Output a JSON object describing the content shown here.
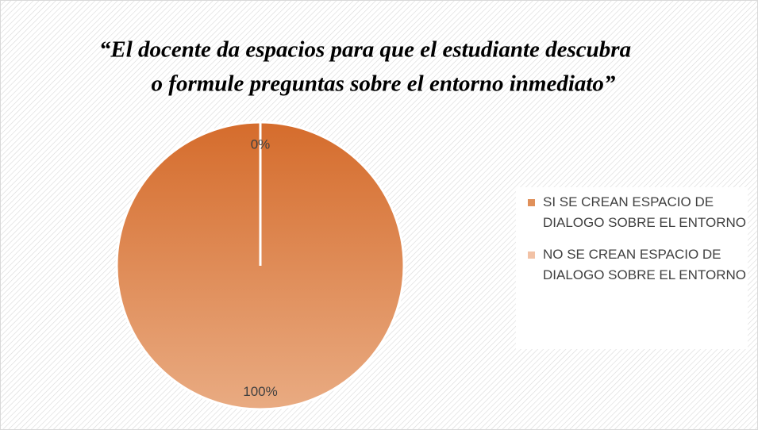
{
  "chart_data": {
    "type": "pie",
    "title": [
      "“El docente da espacios para que el estudiante descubra",
      "o formule preguntas sobre el entorno inmediato”"
    ],
    "categories": [
      "SI SE CREAN ESPACIO DE DIALOGO SOBRE EL ENTORNO",
      "NO SE CREAN ESPACIO DE DIALOGO SOBRE EL ENTORNO"
    ],
    "values": [
      100,
      0
    ],
    "value_labels": [
      "100%",
      "0%"
    ],
    "colors": [
      "#d56c2c",
      "#f2c2a6"
    ],
    "legend": "right"
  }
}
